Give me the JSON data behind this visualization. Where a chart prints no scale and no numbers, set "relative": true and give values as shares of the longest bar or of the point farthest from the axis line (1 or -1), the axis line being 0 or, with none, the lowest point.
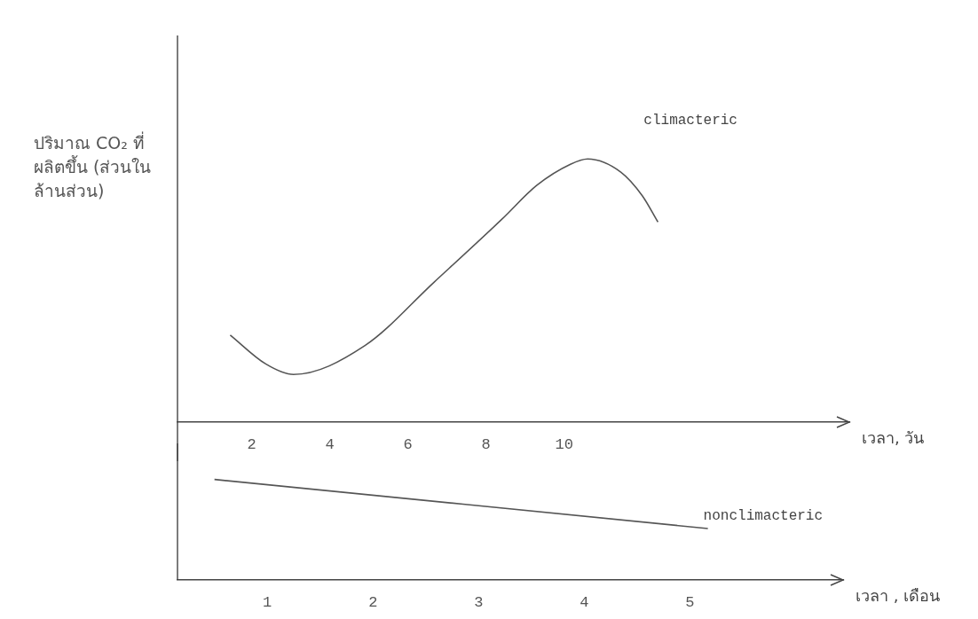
{
  "chart_data": [
    {
      "type": "line",
      "relative": true,
      "ylabel": "ปริมาณ CO₂ ที่ผลิตขึ้น (ส่วนในล้านส่วน)",
      "xlabel": "เวลา, วัน",
      "xlim": [
        0.1,
        17.3
      ],
      "xticks": [
        2,
        4,
        6,
        8,
        10
      ],
      "legend": false,
      "grid": false,
      "marker": "none",
      "line_style": "solid",
      "series": [
        {
          "name": "climacteric",
          "color": "#555555",
          "x": [
            1.45,
            2.36,
            3.07,
            4.9,
            6.66,
            8.4,
            9.3,
            10.16,
            10.6,
            11.45,
            12.0,
            12.4
          ],
          "values": [
            0.33,
            0.22,
            0.18,
            0.29,
            0.53,
            0.77,
            0.9,
            0.98,
            1,
            0.95,
            0.86,
            0.76
          ]
        }
      ]
    },
    {
      "type": "line",
      "relative": true,
      "xlabel": "เวลา , เดือน",
      "xlim": [
        0.15,
        6.45
      ],
      "xticks": [
        1,
        2,
        3,
        4,
        5
      ],
      "legend": false,
      "grid": false,
      "marker": "none",
      "line_style": "solid",
      "series": [
        {
          "name": "nonclimacteric",
          "color": "#555555",
          "x": [
            0.5,
            5.17
          ],
          "values": [
            1,
            0.51
          ]
        }
      ]
    }
  ]
}
